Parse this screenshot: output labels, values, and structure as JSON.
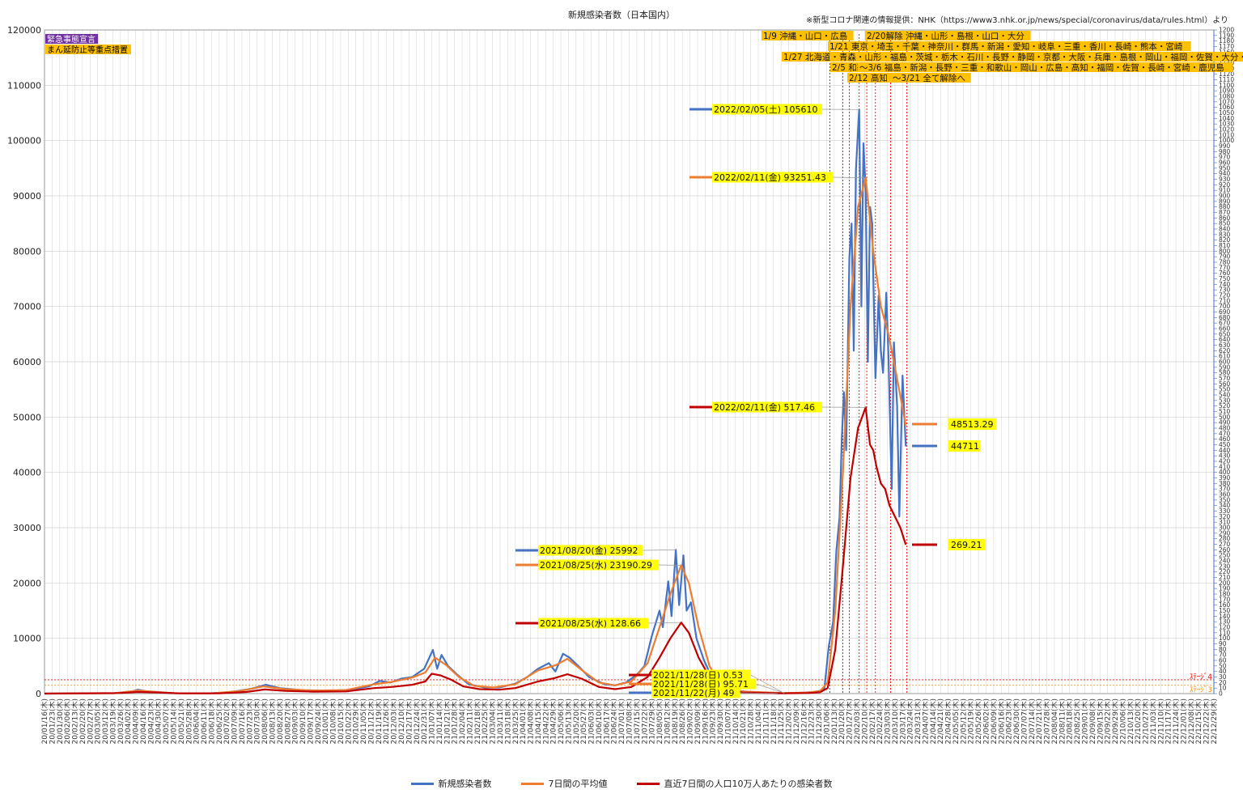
{
  "chart_data": {
    "type": "line",
    "title": "新規感染者数（日本国内）",
    "source_note": "※新型コロナ関連の情報提供：NHK（https://www3.nhk.or.jp/news/special/coronavirus/data/rules.html）より",
    "y_left": {
      "min": 0,
      "max": 120000,
      "ticks": [
        0,
        10000,
        20000,
        30000,
        40000,
        50000,
        60000,
        70000,
        80000,
        90000,
        100000,
        110000,
        120000
      ]
    },
    "y_right": {
      "min": 0,
      "max": 1200,
      "tick_step": 10,
      "label_step": 10
    },
    "x_axis": {
      "start": "2020-01-16",
      "end": "2022-12-29",
      "tick_step_days": 7,
      "tick_label_sample": [
        "20/01/16(木)",
        "22/12/29(木)"
      ],
      "weekday": "(木)"
    },
    "series": [
      {
        "name": "新規感染者数",
        "color": "#4472C4",
        "axis": "left",
        "points": [
          [
            "2020-01-16",
            0
          ],
          [
            "2020-03-20",
            80
          ],
          [
            "2020-04-06",
            400
          ],
          [
            "2020-04-11",
            700
          ],
          [
            "2020-04-20",
            400
          ],
          [
            "2020-05-10",
            80
          ],
          [
            "2020-06-15",
            50
          ],
          [
            "2020-07-05",
            250
          ],
          [
            "2020-07-25",
            900
          ],
          [
            "2020-08-07",
            1600
          ],
          [
            "2020-08-20",
            1000
          ],
          [
            "2020-09-10",
            600
          ],
          [
            "2020-10-10",
            550
          ],
          [
            "2020-10-25",
            700
          ],
          [
            "2020-11-10",
            1300
          ],
          [
            "2020-11-20",
            2300
          ],
          [
            "2020-11-30",
            2000
          ],
          [
            "2020-12-10",
            2700
          ],
          [
            "2020-12-20",
            3000
          ],
          [
            "2020-12-31",
            4500
          ],
          [
            "2021-01-08",
            7900
          ],
          [
            "2021-01-12",
            4500
          ],
          [
            "2021-01-16",
            7000
          ],
          [
            "2021-01-22",
            5000
          ],
          [
            "2021-01-30",
            3500
          ],
          [
            "2021-02-10",
            1700
          ],
          [
            "2021-02-25",
            1100
          ],
          [
            "2021-03-10",
            1100
          ],
          [
            "2021-03-25",
            1800
          ],
          [
            "2021-04-05",
            3000
          ],
          [
            "2021-04-15",
            4500
          ],
          [
            "2021-04-25",
            5500
          ],
          [
            "2021-05-01",
            4000
          ],
          [
            "2021-05-08",
            7200
          ],
          [
            "2021-05-14",
            6500
          ],
          [
            "2021-05-22",
            5000
          ],
          [
            "2021-06-01",
            3000
          ],
          [
            "2021-06-15",
            1700
          ],
          [
            "2021-06-25",
            1500
          ],
          [
            "2021-07-05",
            2000
          ],
          [
            "2021-07-15",
            3400
          ],
          [
            "2021-07-22",
            5000
          ],
          [
            "2021-07-29",
            10500
          ],
          [
            "2021-08-05",
            15000
          ],
          [
            "2021-08-08",
            12000
          ],
          [
            "2021-08-13",
            20300
          ],
          [
            "2021-08-16",
            14000
          ],
          [
            "2021-08-20",
            25992
          ],
          [
            "2021-08-23",
            16000
          ],
          [
            "2021-08-27",
            25000
          ],
          [
            "2021-08-30",
            15000
          ],
          [
            "2021-09-03",
            16500
          ],
          [
            "2021-09-08",
            10000
          ],
          [
            "2021-09-15",
            6000
          ],
          [
            "2021-09-22",
            3000
          ],
          [
            "2021-09-30",
            1500
          ],
          [
            "2021-10-10",
            700
          ],
          [
            "2021-10-25",
            300
          ],
          [
            "2021-11-10",
            150
          ],
          [
            "2021-11-22",
            49
          ],
          [
            "2021-12-10",
            120
          ],
          [
            "2021-12-25",
            300
          ],
          [
            "2021-12-31",
            500
          ],
          [
            "2022-01-04",
            1000
          ],
          [
            "2022-01-08",
            8500
          ],
          [
            "2022-01-12",
            13000
          ],
          [
            "2022-01-15",
            25800
          ],
          [
            "2022-01-18",
            32000
          ],
          [
            "2022-01-20",
            46000
          ],
          [
            "2022-01-22",
            54500
          ],
          [
            "2022-01-24",
            44000
          ],
          [
            "2022-01-27",
            78900
          ],
          [
            "2022-01-29",
            85000
          ],
          [
            "2022-01-31",
            62000
          ],
          [
            "2022-02-02",
            94800
          ],
          [
            "2022-02-05",
            105610
          ],
          [
            "2022-02-07",
            70000
          ],
          [
            "2022-02-09",
            99500
          ],
          [
            "2022-02-11",
            91000
          ],
          [
            "2022-02-13",
            60000
          ],
          [
            "2022-02-15",
            88000
          ],
          [
            "2022-02-17",
            85000
          ],
          [
            "2022-02-20",
            57000
          ],
          [
            "2022-02-23",
            72000
          ],
          [
            "2022-02-25",
            62000
          ],
          [
            "2022-02-27",
            58000
          ],
          [
            "2022-03-02",
            72500
          ],
          [
            "2022-03-04",
            61000
          ],
          [
            "2022-03-07",
            37000
          ],
          [
            "2022-03-09",
            63500
          ],
          [
            "2022-03-12",
            52000
          ],
          [
            "2022-03-14",
            32000
          ],
          [
            "2022-03-17",
            57500
          ],
          [
            "2022-03-20",
            44711
          ]
        ]
      },
      {
        "name": "7日間の平均値",
        "color": "#ED7D31",
        "axis": "left",
        "points": [
          [
            "2020-01-16",
            0
          ],
          [
            "2020-03-20",
            60
          ],
          [
            "2020-04-11",
            550
          ],
          [
            "2020-04-25",
            350
          ],
          [
            "2020-05-15",
            60
          ],
          [
            "2020-06-20",
            60
          ],
          [
            "2020-07-15",
            500
          ],
          [
            "2020-08-05",
            1300
          ],
          [
            "2020-08-25",
            800
          ],
          [
            "2020-09-20",
            550
          ],
          [
            "2020-10-20",
            650
          ],
          [
            "2020-11-15",
            1700
          ],
          [
            "2020-12-01",
            2100
          ],
          [
            "2020-12-20",
            2900
          ],
          [
            "2021-01-01",
            3800
          ],
          [
            "2021-01-10",
            6500
          ],
          [
            "2021-01-20",
            5200
          ],
          [
            "2021-02-01",
            3000
          ],
          [
            "2021-02-15",
            1400
          ],
          [
            "2021-03-05",
            1100
          ],
          [
            "2021-03-25",
            1700
          ],
          [
            "2021-04-15",
            4200
          ],
          [
            "2021-05-01",
            5100
          ],
          [
            "2021-05-12",
            6300
          ],
          [
            "2021-05-25",
            4300
          ],
          [
            "2021-06-10",
            2000
          ],
          [
            "2021-06-25",
            1500
          ],
          [
            "2021-07-10",
            2200
          ],
          [
            "2021-07-25",
            5500
          ],
          [
            "2021-08-05",
            12000
          ],
          [
            "2021-08-15",
            18000
          ],
          [
            "2021-08-25",
            23190
          ],
          [
            "2021-09-01",
            20000
          ],
          [
            "2021-09-10",
            12000
          ],
          [
            "2021-09-20",
            5000
          ],
          [
            "2021-10-01",
            1500
          ],
          [
            "2021-10-20",
            400
          ],
          [
            "2021-11-28",
            96
          ],
          [
            "2021-12-20",
            200
          ],
          [
            "2021-12-31",
            450
          ],
          [
            "2022-01-07",
            2000
          ],
          [
            "2022-01-14",
            15000
          ],
          [
            "2022-01-21",
            40000
          ],
          [
            "2022-01-28",
            70000
          ],
          [
            "2022-02-04",
            88000
          ],
          [
            "2022-02-11",
            93251
          ],
          [
            "2022-02-18",
            80000
          ],
          [
            "2022-02-25",
            70000
          ],
          [
            "2022-03-04",
            65000
          ],
          [
            "2022-03-11",
            58000
          ],
          [
            "2022-03-20",
            48513
          ]
        ]
      },
      {
        "name": "直近7日間の人口10万人あたりの感染者数",
        "color": "#C00000",
        "axis": "right",
        "points": [
          [
            "2020-01-16",
            0
          ],
          [
            "2020-03-25",
            1
          ],
          [
            "2020-04-11",
            3
          ],
          [
            "2020-04-30",
            2
          ],
          [
            "2020-05-20",
            0.5
          ],
          [
            "2020-06-25",
            0.5
          ],
          [
            "2020-07-20",
            3
          ],
          [
            "2020-08-06",
            7.5
          ],
          [
            "2020-08-25",
            5
          ],
          [
            "2020-09-20",
            3.5
          ],
          [
            "2020-10-20",
            4
          ],
          [
            "2020-11-15",
            10
          ],
          [
            "2020-12-01",
            12
          ],
          [
            "2020-12-20",
            16
          ],
          [
            "2021-01-01",
            22
          ],
          [
            "2021-01-07",
            36
          ],
          [
            "2021-01-15",
            33
          ],
          [
            "2021-01-25",
            25
          ],
          [
            "2021-02-05",
            13
          ],
          [
            "2021-02-20",
            8
          ],
          [
            "2021-03-10",
            7
          ],
          [
            "2021-03-25",
            10
          ],
          [
            "2021-04-15",
            22
          ],
          [
            "2021-04-30",
            28
          ],
          [
            "2021-05-12",
            35
          ],
          [
            "2021-05-25",
            27
          ],
          [
            "2021-06-10",
            12
          ],
          [
            "2021-06-25",
            8
          ],
          [
            "2021-07-10",
            12
          ],
          [
            "2021-07-25",
            30
          ],
          [
            "2021-08-05",
            65
          ],
          [
            "2021-08-15",
            100
          ],
          [
            "2021-08-25",
            128.66
          ],
          [
            "2021-09-01",
            110
          ],
          [
            "2021-09-10",
            65
          ],
          [
            "2021-09-20",
            30
          ],
          [
            "2021-10-01",
            10
          ],
          [
            "2021-10-20",
            2
          ],
          [
            "2021-11-28",
            0.53
          ],
          [
            "2021-12-20",
            1
          ],
          [
            "2021-12-31",
            2.5
          ],
          [
            "2022-01-07",
            10
          ],
          [
            "2022-01-14",
            80
          ],
          [
            "2022-01-21",
            230
          ],
          [
            "2022-01-28",
            390
          ],
          [
            "2022-02-04",
            480
          ],
          [
            "2022-02-11",
            517.46
          ],
          [
            "2022-02-15",
            450
          ],
          [
            "2022-02-18",
            440
          ],
          [
            "2022-02-21",
            410
          ],
          [
            "2022-02-25",
            380
          ],
          [
            "2022-03-01",
            370
          ],
          [
            "2022-03-05",
            340
          ],
          [
            "2022-03-10",
            320
          ],
          [
            "2022-03-15",
            300
          ],
          [
            "2022-03-20",
            269.21
          ]
        ]
      }
    ],
    "callouts": [
      {
        "text": "2022/02/05(土) 105610",
        "date": "2022-02-05",
        "value": 105610,
        "axis": "left",
        "color": "#4472C4"
      },
      {
        "text": "2022/02/11(金) 93251.43",
        "date": "2022-02-11",
        "value": 93251.43,
        "axis": "left",
        "color": "#ED7D31"
      },
      {
        "text": "2022/02/11(金) 517.46",
        "date": "2022-02-11",
        "value": 517.46,
        "axis": "right",
        "color": "#C00000"
      },
      {
        "text": "2021/08/20(金) 25992",
        "date": "2021-08-20",
        "value": 25992,
        "axis": "left",
        "color": "#4472C4"
      },
      {
        "text": "2021/08/25(水) 23190.29",
        "date": "2021-08-25",
        "value": 23190.29,
        "axis": "left",
        "color": "#ED7D31"
      },
      {
        "text": "2021/08/25(水) 128.66",
        "date": "2021-08-25",
        "value": 128.66,
        "axis": "right",
        "color": "#C00000"
      },
      {
        "text": "2021/11/28(日) 0.53",
        "date": "2021-11-28",
        "value": 0.53,
        "axis": "right",
        "color": "#C00000"
      },
      {
        "text": "2021/11/28(日) 95.71",
        "date": "2021-11-28",
        "value": 95.71,
        "axis": "left",
        "color": "#ED7D31"
      },
      {
        "text": "2021/11/22(月) 49",
        "date": "2021-11-22",
        "value": 49,
        "axis": "left",
        "color": "#4472C4"
      }
    ],
    "latest_values": [
      {
        "text": "48513.29",
        "value": 48513.29,
        "axis": "left",
        "color": "#ED7D31"
      },
      {
        "text": "44711",
        "value": 44711,
        "axis": "left",
        "color": "#4472C4"
      },
      {
        "text": "269.21",
        "value": 269.21,
        "axis": "right",
        "color": "#C00000"
      }
    ],
    "event_lines": {
      "color": "#FF0000",
      "dates": [
        "2022-01-09",
        "2022-01-21",
        "2022-01-27",
        "2022-02-05",
        "2022-02-12",
        "2022-02-20",
        "2022-03-06",
        "2022-03-21"
      ]
    },
    "threshold_lines": [
      {
        "value": 25,
        "axis": "right",
        "color": "#FF0000",
        "label": "ｽﾃｰｼﾞ4"
      },
      {
        "value": 15,
        "axis": "right",
        "color": "#FF8C00",
        "label": "ｽﾃｰｼﾞ3"
      }
    ],
    "event_labels": [
      "1/9 沖縄・山口・広島",
      "2/20解除 沖縄・山形・島根・山口・大分",
      "1/21 東京・埼玉・千葉・神奈川・群馬・新潟・愛知・岐阜・三重・香川・長崎・熊本・宮崎",
      "1/27 北海道・青森・山形・福島・茨城・栃木・石川・長野・静岡・京都・大阪・兵庫・島根・岡山・福岡・佐賀・大分・鹿児島",
      "2/5 和歌山",
      "～3/6 福島・新潟・長野・三重・和歌山・岡山・広島・高知・福岡・佐賀・長崎・宮崎・鹿児島",
      "2/12 高知",
      "～3/21 全て解除へ"
    ],
    "status_legend": [
      {
        "text": "緊急事態宣言",
        "color": "#7030A0",
        "text_color": "#ffffff"
      },
      {
        "text": "まん延防止等重点措置",
        "color": "#FFC000",
        "text_color": "#000000"
      }
    ],
    "right_axis_end_label": "1200",
    "grid": true,
    "legend_position": "bottom"
  }
}
